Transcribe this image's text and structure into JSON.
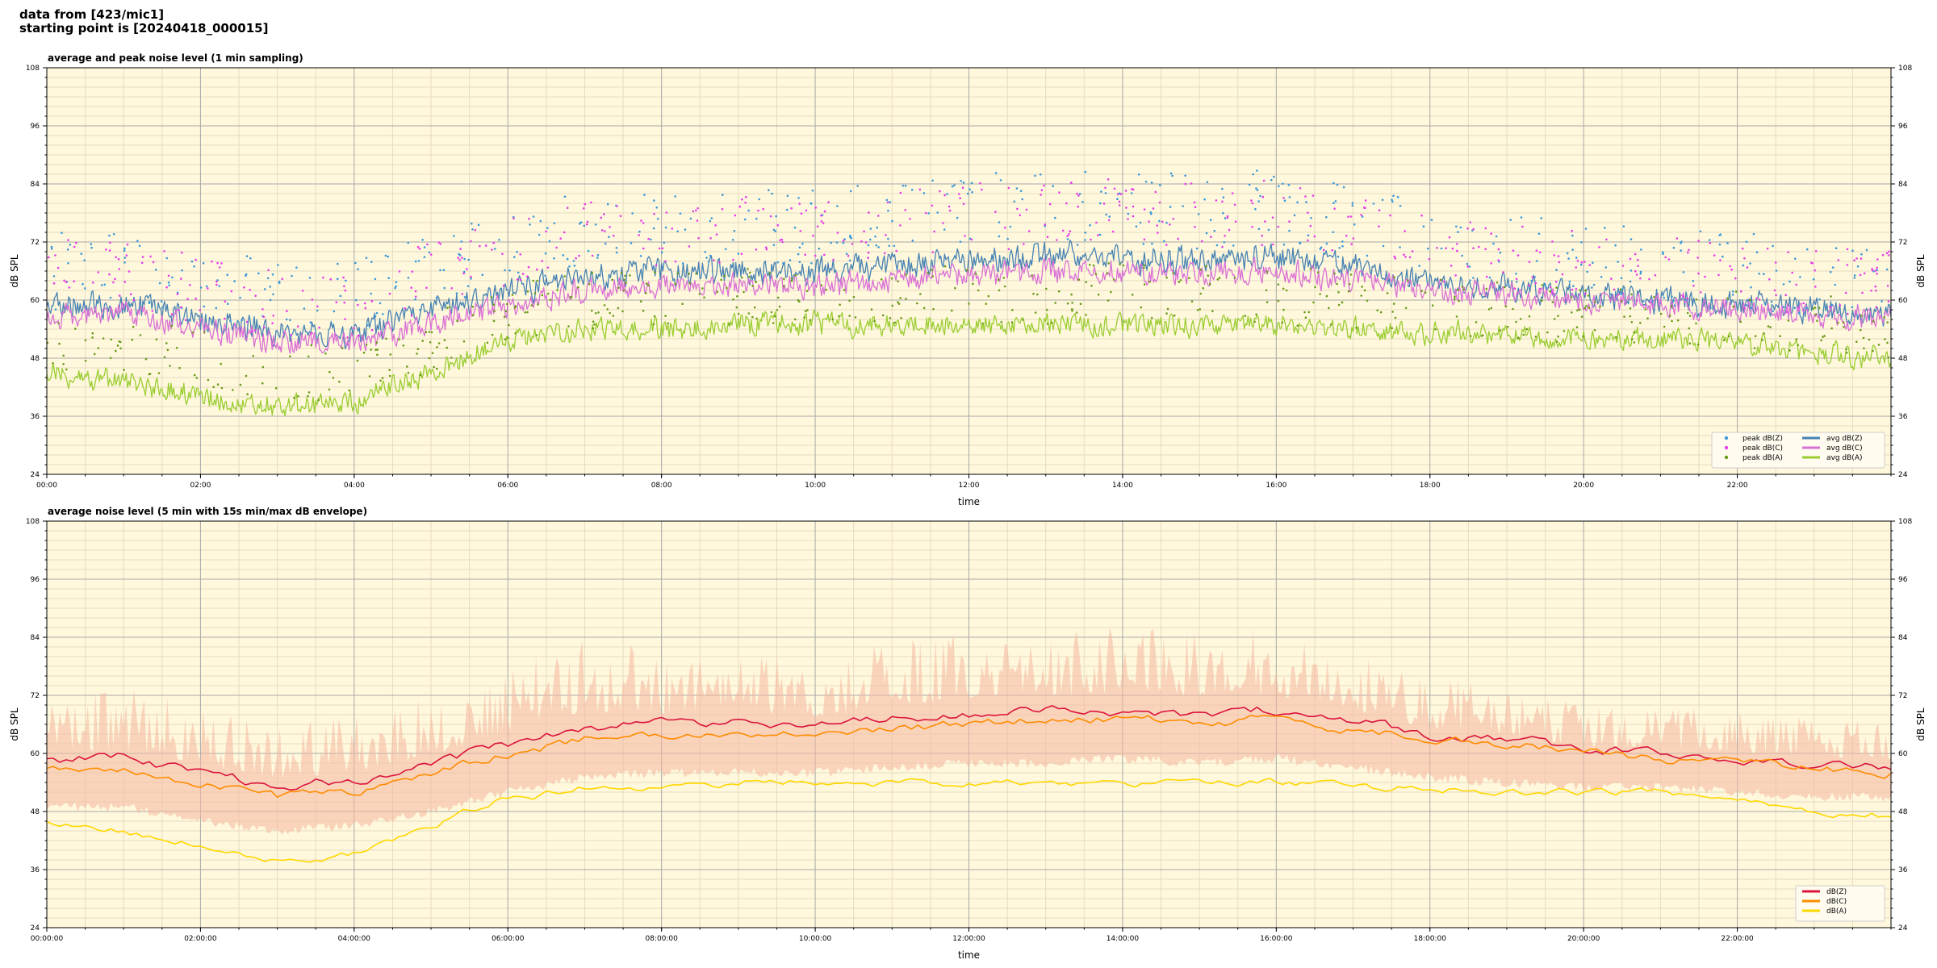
{
  "header": {
    "line1": "data from [423/mic1]",
    "line2": "starting point is [20240418_000015]"
  },
  "colors": {
    "plot_bg": "#fff8dc",
    "grid_major": "#a8a8a8",
    "grid_minor": "#e6dcc0",
    "peak_z": "#3a98d8",
    "peak_c": "#e83ce8",
    "peak_a": "#6a9a1a",
    "avg_z": "#4682b4",
    "avg_c": "#da70d6",
    "avg_a": "#9acd32",
    "band": "#f4b6a0",
    "db_z": "#dc143c",
    "db_c": "#ff8c00",
    "db_a": "#ffd700"
  },
  "chart_data": [
    {
      "type": "line",
      "title": "average and peak noise level (1 min sampling)",
      "xlabel": "time",
      "ylabel": "dB SPL",
      "ylim": [
        24,
        108
      ],
      "xlim_hours": [
        0,
        24
      ],
      "yticks": [
        24,
        36,
        48,
        60,
        72,
        84,
        96,
        108
      ],
      "xtick_hours": [
        0,
        2,
        4,
        6,
        8,
        10,
        12,
        14,
        16,
        18,
        20,
        22
      ],
      "xtick_labels": [
        "00:00",
        "02:00",
        "04:00",
        "06:00",
        "08:00",
        "10:00",
        "12:00",
        "14:00",
        "16:00",
        "18:00",
        "20:00",
        "22:00"
      ],
      "grid": true,
      "legend_position": "bottom-right",
      "legend": [
        {
          "label": "peak dB(Z)",
          "kind": "dot",
          "color_key": "peak_z"
        },
        {
          "label": "peak dB(C)",
          "kind": "dot",
          "color_key": "peak_c"
        },
        {
          "label": "peak dB(A)",
          "kind": "dot",
          "color_key": "peak_a"
        },
        {
          "label": "avg dB(Z)",
          "kind": "line",
          "color_key": "avg_z"
        },
        {
          "label": "avg dB(C)",
          "kind": "line",
          "color_key": "avg_c"
        },
        {
          "label": "avg dB(A)",
          "kind": "line",
          "color_key": "avg_a"
        }
      ],
      "x_hours": [
        0,
        1,
        2,
        3,
        4,
        5,
        6,
        7,
        8,
        9,
        10,
        11,
        12,
        13,
        14,
        15,
        16,
        17,
        18,
        19,
        20,
        21,
        22,
        23,
        24
      ],
      "series": [
        {
          "name": "avg dB(Z)",
          "kind": "line",
          "color_key": "avg_z",
          "jitter": 4.0,
          "values": [
            59,
            59,
            56,
            53,
            53,
            58,
            62,
            65,
            66,
            66,
            66,
            67,
            68,
            69,
            69,
            68,
            69,
            67,
            64,
            63,
            61,
            60,
            59,
            58,
            57
          ]
        },
        {
          "name": "avg dB(C)",
          "kind": "line",
          "color_key": "avg_c",
          "jitter": 3.5,
          "values": [
            56,
            57,
            54,
            51,
            51,
            55,
            59,
            62,
            63,
            63,
            63,
            64,
            65,
            66,
            66,
            65,
            66,
            64,
            62,
            61,
            60,
            59,
            58,
            57,
            56
          ]
        },
        {
          "name": "avg dB(A)",
          "kind": "line",
          "color_key": "avg_a",
          "jitter": 3.2,
          "values": [
            45,
            43,
            40,
            38,
            39,
            45,
            52,
            54,
            54,
            55,
            55,
            55,
            55,
            55,
            55,
            55,
            55,
            54,
            53,
            53,
            52,
            52,
            51,
            49,
            48
          ]
        },
        {
          "name": "peak dB(Z)",
          "kind": "dots",
          "color_key": "peak_z",
          "jitter": 8.0,
          "values": [
            66,
            66,
            63,
            60,
            60,
            66,
            71,
            75,
            75,
            76,
            75,
            77,
            78,
            79,
            80,
            78,
            79,
            76,
            72,
            70,
            68,
            67,
            66,
            65,
            64
          ]
        },
        {
          "name": "peak dB(C)",
          "kind": "dots",
          "color_key": "peak_c",
          "jitter": 7.0,
          "values": [
            67,
            66,
            62,
            59,
            59,
            65,
            70,
            74,
            74,
            75,
            74,
            76,
            77,
            78,
            79,
            77,
            78,
            75,
            71,
            69,
            67,
            66,
            65,
            64,
            63
          ]
        },
        {
          "name": "peak dB(A)",
          "kind": "dots",
          "color_key": "peak_a",
          "jitter": 6.0,
          "values": [
            52,
            50,
            48,
            45,
            45,
            51,
            58,
            60,
            60,
            61,
            61,
            61,
            61,
            61,
            62,
            61,
            61,
            60,
            59,
            58,
            57,
            57,
            56,
            55,
            54
          ]
        }
      ]
    },
    {
      "type": "line",
      "title": "average noise level (5 min with 15s min/max dB envelope)",
      "xlabel": "time",
      "ylabel": "dB SPL",
      "ylim": [
        24,
        108
      ],
      "xlim_hours": [
        0,
        24
      ],
      "yticks": [
        24,
        36,
        48,
        60,
        72,
        84,
        96,
        108
      ],
      "xtick_hours": [
        0,
        2,
        4,
        6,
        8,
        10,
        12,
        14,
        16,
        18,
        20,
        22
      ],
      "xtick_labels": [
        "00:00:00",
        "02:00:00",
        "04:00:00",
        "06:00:00",
        "08:00:00",
        "10:00:00",
        "12:00:00",
        "14:00:00",
        "16:00:00",
        "18:00:00",
        "20:00:00",
        "22:00:00"
      ],
      "grid": true,
      "legend_position": "bottom-right",
      "legend": [
        {
          "label": "dB(Z)",
          "kind": "line",
          "color_key": "db_z"
        },
        {
          "label": "dB(C)",
          "kind": "line",
          "color_key": "db_c"
        },
        {
          "label": "dB(A)",
          "kind": "line",
          "color_key": "db_a"
        }
      ],
      "x_hours": [
        0,
        1,
        2,
        3,
        4,
        5,
        6,
        7,
        8,
        9,
        10,
        11,
        12,
        13,
        14,
        15,
        16,
        17,
        18,
        19,
        20,
        21,
        22,
        23,
        24
      ],
      "envelope": {
        "color_key": "band",
        "min": [
          50,
          50,
          47,
          45,
          46,
          49,
          53,
          56,
          57,
          57,
          57,
          58,
          59,
          59,
          60,
          59,
          60,
          58,
          56,
          55,
          54,
          54,
          53,
          52,
          52
        ],
        "max": [
          72,
          74,
          70,
          66,
          68,
          72,
          78,
          84,
          82,
          82,
          80,
          84,
          86,
          86,
          88,
          86,
          86,
          82,
          76,
          74,
          70,
          70,
          69,
          68,
          67
        ]
      },
      "series": [
        {
          "name": "dB(Z)",
          "kind": "line",
          "color_key": "db_z",
          "jitter": 1.6,
          "values": [
            59,
            59,
            56,
            53,
            54,
            58,
            62,
            65,
            67,
            66,
            66,
            67,
            68,
            69,
            69,
            68,
            69,
            67,
            64,
            63,
            61,
            60,
            59,
            58,
            57
          ]
        },
        {
          "name": "dB(C)",
          "kind": "line",
          "color_key": "db_c",
          "jitter": 1.4,
          "values": [
            57,
            57,
            54,
            51,
            52,
            56,
            60,
            63,
            64,
            64,
            64,
            65,
            66,
            67,
            67,
            66,
            67,
            65,
            63,
            62,
            60,
            59,
            58,
            57,
            56
          ]
        },
        {
          "name": "dB(A)",
          "kind": "line",
          "color_key": "db_a",
          "jitter": 1.3,
          "values": [
            46,
            44,
            41,
            38,
            39,
            45,
            51,
            53,
            53,
            54,
            54,
            54,
            54,
            54,
            54,
            54,
            54,
            53,
            53,
            52,
            52,
            52,
            51,
            48,
            47
          ]
        }
      ]
    }
  ]
}
